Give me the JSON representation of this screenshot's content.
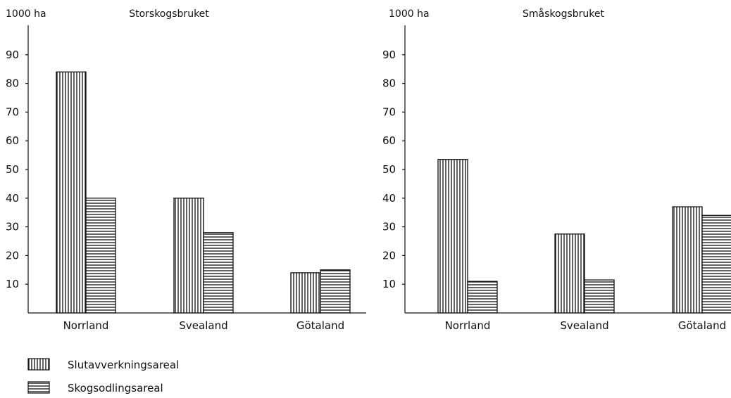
{
  "colors": {
    "ink": "#111111",
    "background": "#ffffff"
  },
  "legend": {
    "placement": "bottom-left",
    "items": [
      {
        "label": "Slutavverkningsareal",
        "pattern": "vertical-hatch"
      },
      {
        "label": "Skogsodlingsareal",
        "pattern": "horizontal-hatch"
      }
    ]
  },
  "chart_data": [
    {
      "type": "bar",
      "title": "Storskogsbruket",
      "ylabel": "1000 ha",
      "xlabel": "",
      "ylim": [
        0,
        100
      ],
      "yticks": [
        10,
        20,
        30,
        40,
        50,
        60,
        70,
        80,
        90
      ],
      "grid": false,
      "categories": [
        "Norrland",
        "Svealand",
        "Götaland"
      ],
      "series": [
        {
          "name": "Slutavverkningsareal",
          "values": [
            84,
            40,
            14
          ]
        },
        {
          "name": "Skogsodlingsareal",
          "values": [
            40,
            28,
            15
          ]
        }
      ]
    },
    {
      "type": "bar",
      "title": "Småskogsbruket",
      "ylabel": "1000 ha",
      "xlabel": "",
      "ylim": [
        0,
        100
      ],
      "yticks": [
        10,
        20,
        30,
        40,
        50,
        60,
        70,
        80,
        90
      ],
      "grid": false,
      "categories": [
        "Norrland",
        "Svealand",
        "Götaland"
      ],
      "series": [
        {
          "name": "Slutavverkningsareal",
          "values": [
            53.5,
            27.5,
            37
          ]
        },
        {
          "name": "Skogsodlingsareal",
          "values": [
            11,
            11.5,
            34
          ]
        }
      ]
    }
  ]
}
